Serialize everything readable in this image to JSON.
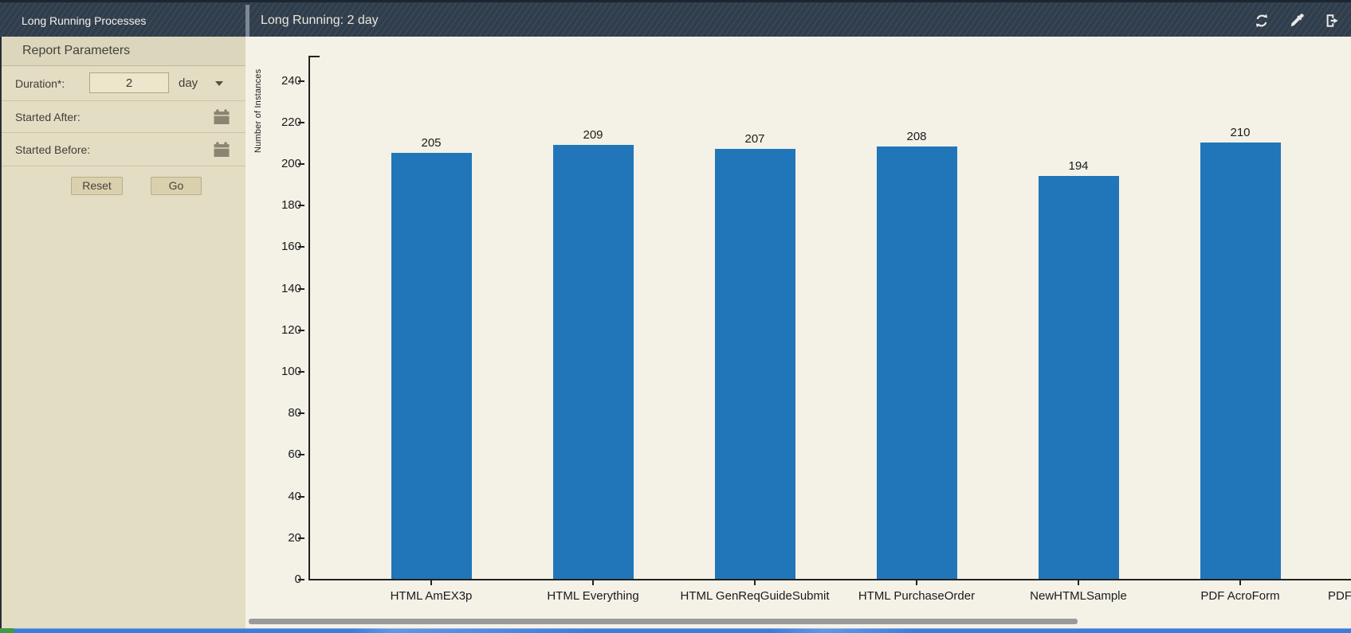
{
  "window": {
    "panel_title": "Long Running Processes",
    "main_title": "Long Running: 2 day"
  },
  "toolbar": {
    "icons": [
      "refresh-icon",
      "eyedropper-icon",
      "export-icon"
    ]
  },
  "sidebar": {
    "section_title": "Report Parameters",
    "fields": {
      "duration": {
        "label": "Duration*:",
        "value": "2",
        "unit": "day"
      },
      "started_after": {
        "label": "Started After:",
        "value": ""
      },
      "started_before": {
        "label": "Started Before:",
        "value": ""
      }
    },
    "reset_button": "Reset",
    "go_button": "Go",
    "icons": [
      "calendar-icon",
      "dropdown-caret-icon"
    ]
  },
  "chart_data": {
    "type": "bar",
    "title": "",
    "xlabel": "",
    "ylabel": "Number of Instances",
    "categories": [
      "HTML AmEX3p",
      "HTML Everything",
      "HTML GenReqGuideSubmit",
      "HTML PurchaseOrder",
      "NewHTMLSample",
      "PDF AcroForm"
    ],
    "values": [
      205,
      209,
      207,
      208,
      194,
      210
    ],
    "overflow_label": "PDF",
    "value_labels": true,
    "ylim": [
      0,
      250
    ],
    "ytick_step": 20,
    "grid": false,
    "legend": null,
    "bar_color": "#2176b9"
  },
  "colors": {
    "header_bg": "#2f3d4c",
    "sidebar_bg": "#e3ddc4",
    "chart_bg": "#f4f1e7",
    "bar": "#2176b9",
    "scrollbar": "#9a9a9a",
    "bottom_bar": "#3c7dd9",
    "bottom_bar_accent": "#3f9b48"
  }
}
